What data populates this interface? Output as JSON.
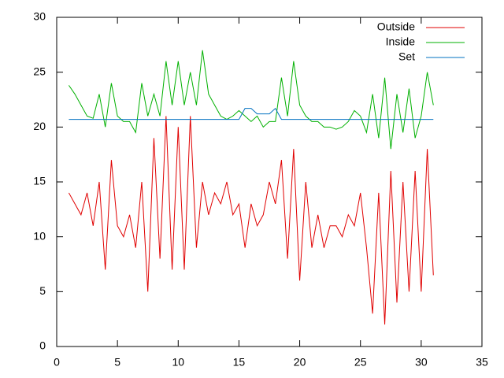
{
  "chart_data": {
    "type": "line",
    "x": [
      1,
      1.5,
      2,
      2.5,
      3,
      3.5,
      4,
      4.5,
      5,
      5.5,
      6,
      6.5,
      7,
      7.5,
      8,
      8.5,
      9,
      9.5,
      10,
      10.5,
      11,
      11.5,
      12,
      12.5,
      13,
      13.5,
      14,
      14.5,
      15,
      15.5,
      16,
      16.5,
      17,
      17.5,
      18,
      18.5,
      19,
      19.5,
      20,
      20.5,
      21,
      21.5,
      22,
      22.5,
      23,
      23.5,
      24,
      24.5,
      25,
      25.5,
      26,
      26.5,
      27,
      27.5,
      28,
      28.5,
      29,
      29.5,
      30,
      30.5,
      31
    ],
    "series": [
      {
        "name": "Outside",
        "color": "#e00000",
        "values": [
          14,
          13,
          12,
          14,
          11,
          15,
          7,
          17,
          11,
          10,
          12,
          9,
          15,
          5,
          19,
          8,
          21,
          7,
          20,
          7,
          21,
          9,
          15,
          12,
          14,
          13,
          15,
          12,
          13,
          9,
          13,
          11,
          12,
          15,
          13,
          17,
          8,
          18,
          6,
          15,
          9,
          12,
          9,
          11,
          11,
          10,
          12,
          11,
          14,
          9,
          3,
          14,
          2,
          16,
          4,
          15,
          5,
          16,
          5,
          18,
          6.5
        ]
      },
      {
        "name": "Inside",
        "color": "#00b000",
        "values": [
          23.8,
          23,
          22,
          21,
          20.8,
          23,
          20,
          24,
          21,
          20.5,
          20.5,
          19.5,
          24,
          21,
          23,
          21,
          26,
          22,
          26,
          22,
          25,
          22,
          27,
          23,
          22,
          21,
          20.7,
          21,
          21.5,
          21,
          20.5,
          21,
          20,
          20.5,
          20.5,
          24.5,
          21,
          26,
          22,
          21,
          20.5,
          20.5,
          20,
          20,
          19.8,
          20,
          20.5,
          21.5,
          21,
          19.5,
          23,
          19,
          24.5,
          18,
          23,
          19.5,
          23.5,
          19,
          21,
          25,
          22
        ]
      },
      {
        "name": "Set",
        "color": "#0070c0",
        "values": [
          20.7,
          20.7,
          20.7,
          20.7,
          20.7,
          20.7,
          20.7,
          20.7,
          20.7,
          20.7,
          20.7,
          20.7,
          20.7,
          20.7,
          20.7,
          20.7,
          20.7,
          20.7,
          20.7,
          20.7,
          20.7,
          20.7,
          20.7,
          20.7,
          20.7,
          20.7,
          20.7,
          20.7,
          20.7,
          21.7,
          21.7,
          21.2,
          21.2,
          21.2,
          21.7,
          20.7,
          20.7,
          20.7,
          20.7,
          20.7,
          20.7,
          20.7,
          20.7,
          20.7,
          20.7,
          20.7,
          20.7,
          20.7,
          20.7,
          20.7,
          20.7,
          20.7,
          20.7,
          20.7,
          20.7,
          20.7,
          20.7,
          20.7,
          20.7,
          20.7,
          20.7
        ]
      }
    ],
    "xlim": [
      0,
      35
    ],
    "xticks": [
      0,
      5,
      10,
      15,
      20,
      25,
      30,
      35
    ],
    "ylim": [
      0,
      30
    ],
    "yticks": [
      0,
      5,
      10,
      15,
      20,
      25,
      30
    ],
    "legend": "top-right"
  }
}
